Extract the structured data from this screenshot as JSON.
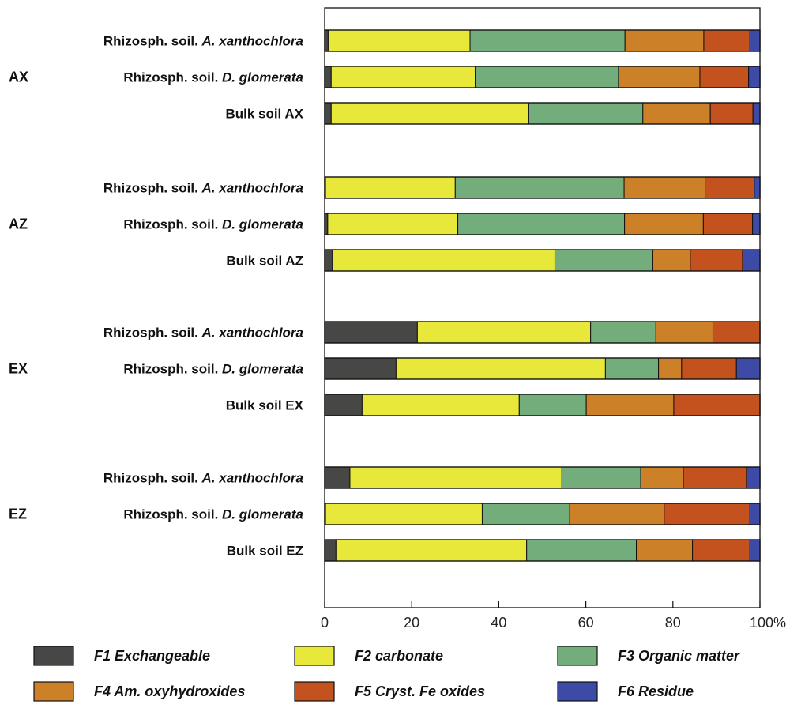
{
  "chart_data": {
    "type": "bar",
    "stacked": true,
    "orientation": "horizontal",
    "xlim": [
      0,
      100
    ],
    "x_ticks": [
      "0",
      "20",
      "40",
      "60",
      "80",
      "100%"
    ],
    "groups": [
      {
        "label": "AX",
        "rows": [
          {
            "prefix": "Rhizosph. soil. ",
            "species": "A. xanthochlora",
            "values": [
              0.8,
              32.6,
              35.6,
              18.1,
              10.6,
              2.3
            ]
          },
          {
            "prefix": "Rhizosph. soil. ",
            "species": "D. glomerata",
            "values": [
              1.5,
              33.1,
              32.9,
              18.7,
              11.2,
              2.6
            ]
          },
          {
            "prefix": "Bulk soil AX",
            "species": "",
            "values": [
              1.5,
              45.4,
              26.2,
              15.5,
              9.8,
              1.6
            ]
          }
        ]
      },
      {
        "label": "AZ",
        "rows": [
          {
            "prefix": "Rhizosph. soil. ",
            "species": "A. xanthochlora",
            "values": [
              0.2,
              29.8,
              38.8,
              18.6,
              11.3,
              1.3
            ]
          },
          {
            "prefix": "Rhizosph. soil. ",
            "species": "D. glomerata",
            "values": [
              0.7,
              29.9,
              38.3,
              18.1,
              11.3,
              1.7
            ]
          },
          {
            "prefix": "Bulk soil AZ",
            "species": "",
            "values": [
              1.8,
              51.1,
              22.5,
              8.6,
              12.0,
              4.0
            ]
          }
        ]
      },
      {
        "label": "EX",
        "rows": [
          {
            "prefix": "Rhizosph. soil. ",
            "species": "A. xanthochlora",
            "values": [
              21.3,
              39.8,
              15.0,
              13.1,
              10.8,
              0.0
            ]
          },
          {
            "prefix": "Rhizosph. soil. ",
            "species": "D. glomerata",
            "values": [
              16.4,
              48.1,
              12.2,
              5.3,
              12.6,
              5.4
            ]
          },
          {
            "prefix": "Bulk soil EX",
            "species": "",
            "values": [
              8.6,
              36.1,
              15.4,
              20.1,
              19.8,
              0.0
            ]
          }
        ]
      },
      {
        "label": "EZ",
        "rows": [
          {
            "prefix": "Rhizosph. soil. ",
            "species": "A. xanthochlora",
            "values": [
              5.8,
              48.7,
              18.1,
              9.8,
              14.5,
              3.1
            ]
          },
          {
            "prefix": "Rhizosph. soil. ",
            "species": "D. glomerata",
            "values": [
              0.2,
              36.0,
              20.1,
              21.7,
              19.7,
              2.3
            ]
          },
          {
            "prefix": "Bulk soil EZ",
            "species": "",
            "values": [
              2.6,
              43.8,
              25.2,
              12.9,
              13.2,
              2.3
            ]
          }
        ]
      }
    ],
    "series": [
      {
        "name": "F1 Exchangeable",
        "color": "#474846"
      },
      {
        "name": "F2 carbonate",
        "color": "#e7e83a"
      },
      {
        "name": "F3 Organic matter",
        "color": "#73ad7b"
      },
      {
        "name": "F4 Am. oxyhydroxides",
        "color": "#cc8128"
      },
      {
        "name": "F5 Cryst. Fe oxides",
        "color": "#c4521f"
      },
      {
        "name": "F6 Residue",
        "color": "#3d4ba6"
      }
    ],
    "legend_position": "bottom",
    "grid": false
  }
}
